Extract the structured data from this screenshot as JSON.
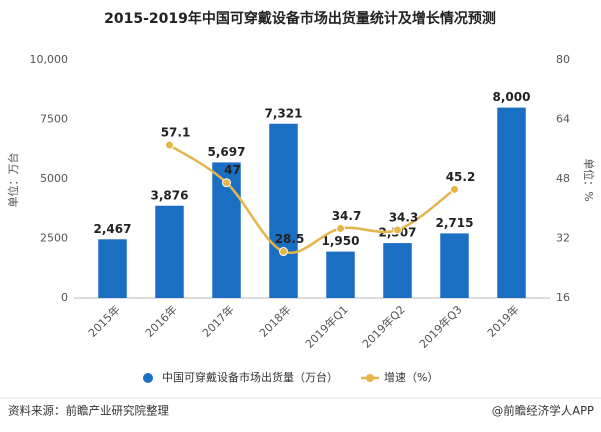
{
  "chart_data": {
    "type": "bar-line",
    "title": "2015-2019年中国可穿戴设备市场出货量统计及增长情况预测",
    "y_label": "单位：万台",
    "y2_label": "单位：%",
    "categories": [
      "2015年",
      "2016年",
      "2017年",
      "2018年",
      "2019年Q1",
      "2019年Q2",
      "2019年Q3",
      "2019年"
    ],
    "series": [
      {
        "name": "中国可穿戴设备市场出货量（万台）",
        "type": "bar",
        "color": "#1b6fc2",
        "values": [
          2467,
          3876,
          5697,
          7321,
          1950,
          2307,
          2715,
          8000
        ],
        "value_labels": [
          "2,467",
          "3,876",
          "5,697",
          "7,321",
          "1,950",
          "2,307",
          "2,715",
          "8,000"
        ]
      },
      {
        "name": "增速（%）",
        "type": "line",
        "axis": "y2",
        "color": "#e6b54a",
        "values": [
          null,
          57.1,
          47,
          28.5,
          34.7,
          34.3,
          45.2,
          null
        ]
      }
    ],
    "ylim": [
      0,
      10000
    ],
    "yticks": [
      0,
      2500,
      5000,
      7500,
      {
        "value": 10000,
        "label": "10,000"
      }
    ],
    "y2lim": [
      16,
      80
    ],
    "y2ticks": [
      16,
      32,
      48,
      64,
      80
    ],
    "grid": false,
    "legend": "bottom",
    "source": "资料来源：前瞻产业研究院整理",
    "credit": "@前瞻经济学人APP"
  }
}
